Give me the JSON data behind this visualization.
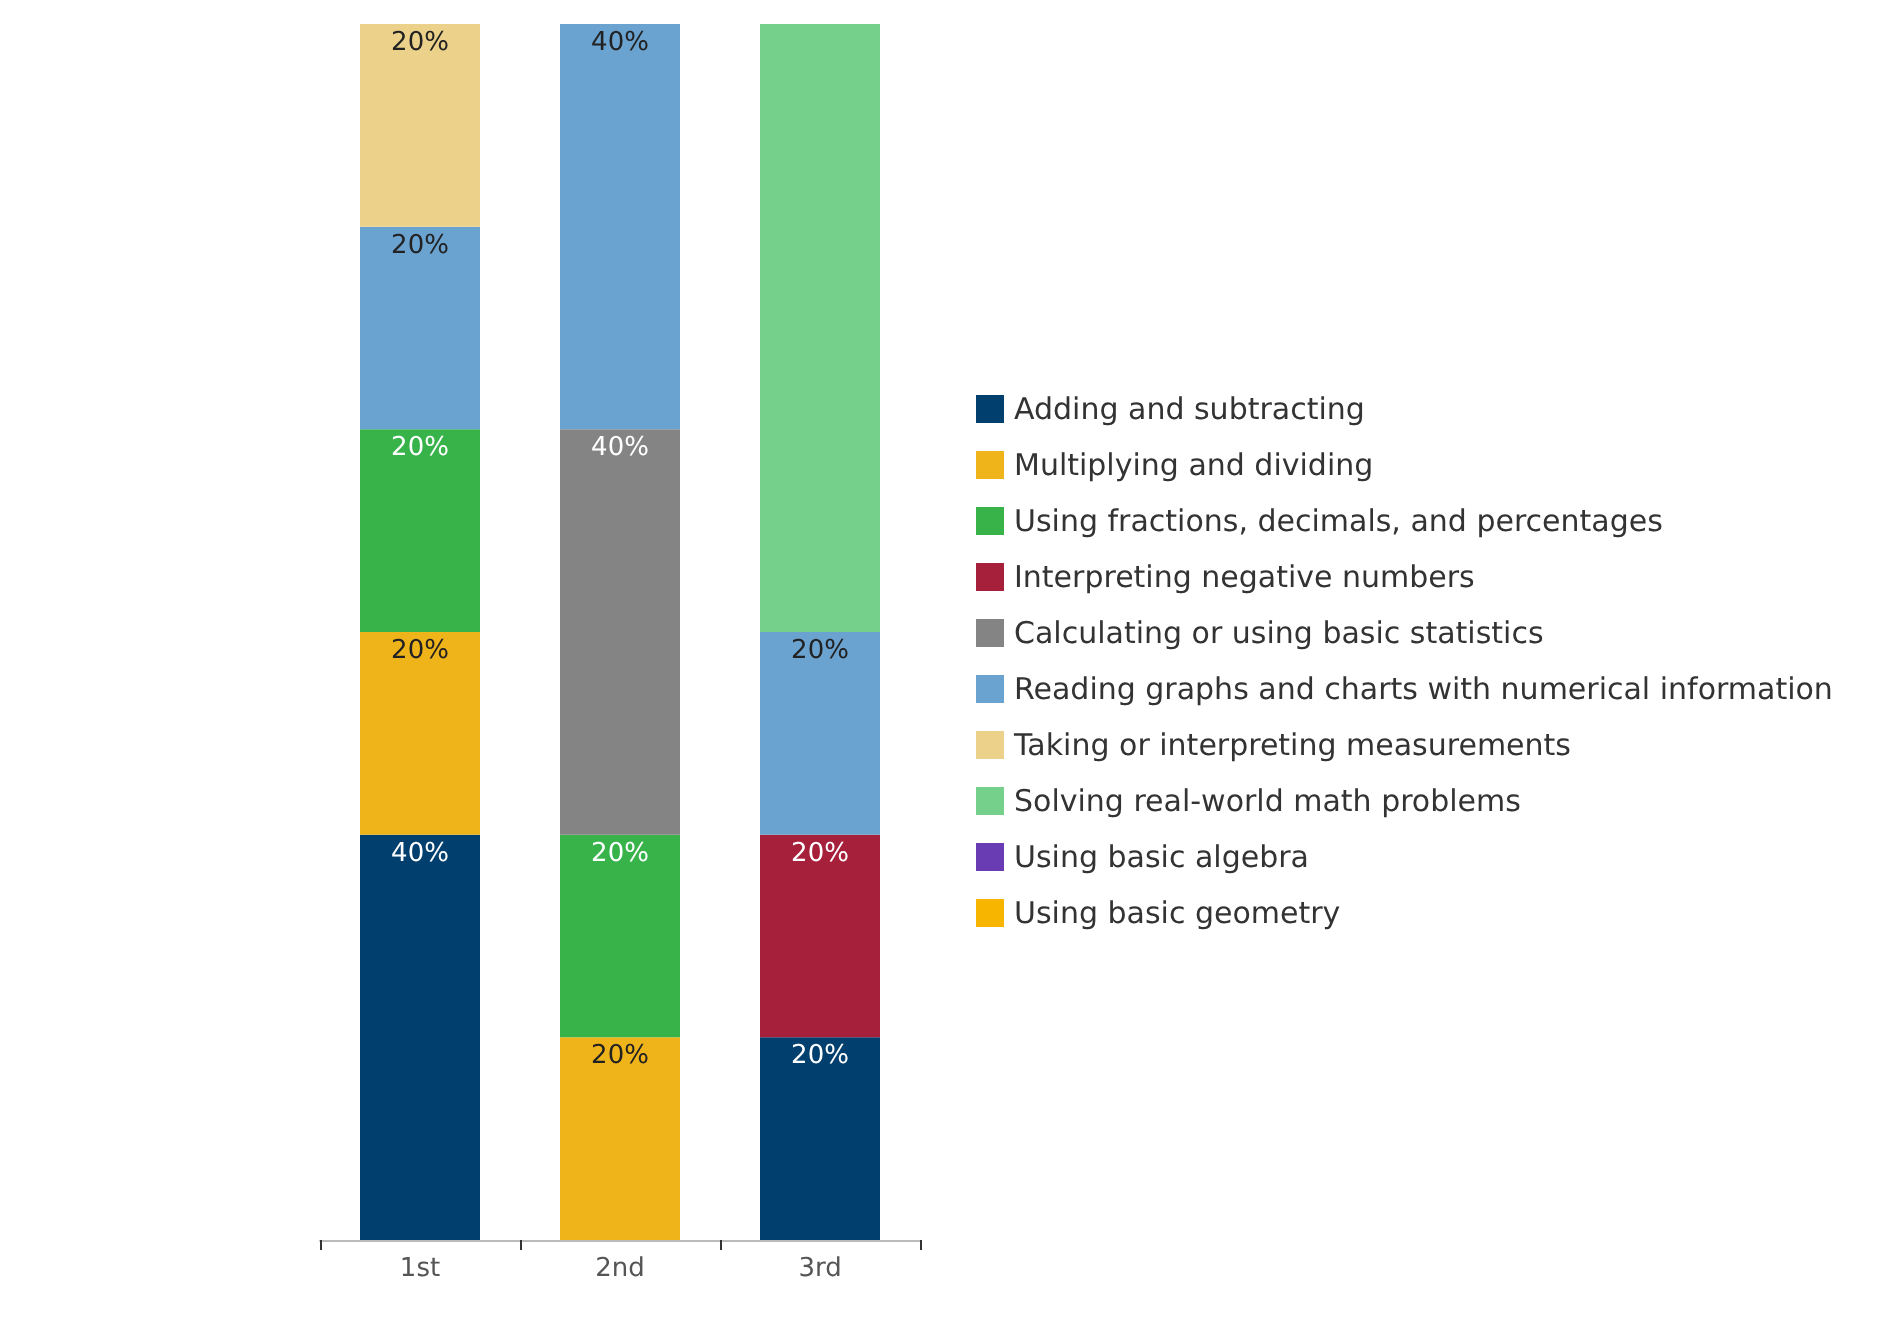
{
  "chart_data": {
    "type": "bar",
    "stacked": true,
    "legend": "right",
    "categories": [
      "1st",
      "2nd",
      "3rd"
    ],
    "series": [
      {
        "name": "Adding and subtracting",
        "color": "#003f6e",
        "values": [
          40,
          null,
          20
        ],
        "value_labels": [
          "40%",
          null,
          "20%"
        ]
      },
      {
        "name": "Multiplying and dividing",
        "color": "#f0b41b",
        "values": [
          20,
          20,
          null
        ],
        "value_labels": [
          "20%",
          "20%",
          null
        ]
      },
      {
        "name": "Using fractions, decimals, and percentages",
        "color": "#37b34a",
        "values": [
          20,
          20,
          null
        ],
        "value_labels": [
          "20%",
          "20%",
          null
        ]
      },
      {
        "name": "Interpreting negative numbers",
        "color": "#a6203c",
        "values": [
          null,
          null,
          20
        ],
        "value_labels": [
          null,
          null,
          "20%"
        ]
      },
      {
        "name": "Calculating or using basic statistics",
        "color": "#848484",
        "values": [
          null,
          40,
          null
        ],
        "value_labels": [
          null,
          "40%",
          null
        ]
      },
      {
        "name": "Reading graphs and charts with numerical information",
        "color": "#6aa2d0",
        "values": [
          20,
          40,
          20
        ],
        "value_labels": [
          "20%",
          "40%",
          "20%"
        ]
      },
      {
        "name": "Taking or interpreting measurements",
        "color": "#ecd18b",
        "values": [
          20,
          null,
          null
        ],
        "value_labels": [
          "20%",
          null,
          null
        ]
      },
      {
        "name": "Solving real-world math problems",
        "color": "#74d08a",
        "values": [
          null,
          null,
          60
        ],
        "value_labels": [
          null,
          null,
          null
        ]
      },
      {
        "name": "Using basic algebra",
        "color": "#6a3cb4",
        "values": [
          null,
          null,
          null
        ],
        "value_labels": [
          null,
          null,
          null
        ]
      },
      {
        "name": "Using basic geometry",
        "color": "#f7b500",
        "values": [
          null,
          null,
          null
        ],
        "value_labels": [
          null,
          null,
          null
        ]
      }
    ]
  }
}
